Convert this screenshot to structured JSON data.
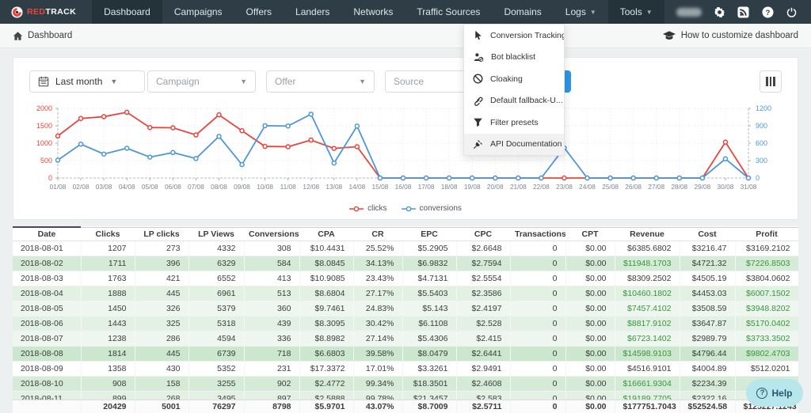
{
  "navbar": {
    "logo_red": "RED",
    "logo_track": "TRACK",
    "items": [
      {
        "label": "Dashboard",
        "state": "active",
        "caret": false
      },
      {
        "label": "Campaigns",
        "state": "",
        "caret": false
      },
      {
        "label": "Offers",
        "state": "",
        "caret": false
      },
      {
        "label": "Landers",
        "state": "",
        "caret": false
      },
      {
        "label": "Networks",
        "state": "",
        "caret": false
      },
      {
        "label": "Traffic Sources",
        "state": "",
        "caret": false
      },
      {
        "label": "Domains",
        "state": "",
        "caret": false
      },
      {
        "label": "Logs",
        "state": "",
        "caret": true
      },
      {
        "label": "Tools",
        "state": "open",
        "caret": true
      }
    ]
  },
  "breadcrumb": {
    "current": "Dashboard",
    "help_link": "How to customize dashboard"
  },
  "filters": {
    "date_range": "Last month",
    "campaign_placeholder": "Campaign",
    "offer_placeholder": "Offer",
    "source_placeholder": "Source"
  },
  "tools_menu": {
    "items": [
      {
        "label": "Conversion Tracking",
        "icon": "cursor-icon",
        "hover": false
      },
      {
        "label": "Bot blacklist",
        "icon": "bot-blacklist-icon",
        "hover": false
      },
      {
        "label": "Cloaking",
        "icon": "ban-icon",
        "hover": false
      },
      {
        "label": "Default fallback-U...",
        "icon": "link-icon",
        "hover": false
      },
      {
        "label": "Filter presets",
        "icon": "filter-icon",
        "hover": false
      },
      {
        "label": "API Documentation",
        "icon": "plug-icon",
        "hover": true
      }
    ]
  },
  "chart_data": {
    "type": "line",
    "title": "",
    "categories": [
      "01/08",
      "02/08",
      "03/08",
      "04/08",
      "05/08",
      "06/08",
      "07/08",
      "08/08",
      "09/08",
      "10/08",
      "11/08",
      "12/08",
      "13/08",
      "14/08",
      "15/08",
      "16/08",
      "17/08",
      "18/08",
      "19/08",
      "20/08",
      "21/08",
      "22/08",
      "23/08",
      "24/08",
      "25/08",
      "26/08",
      "27/08",
      "28/08",
      "29/08",
      "30/08",
      "31/08"
    ],
    "series": [
      {
        "name": "clicks",
        "axis": "left",
        "color": "#e8453c",
        "values": [
          1207,
          1711,
          1763,
          1888,
          1450,
          1443,
          1238,
          1814,
          1358,
          908,
          899,
          1090,
          850,
          900,
          0,
          0,
          0,
          0,
          0,
          0,
          0,
          0,
          0,
          0,
          0,
          0,
          0,
          0,
          0,
          1030,
          0
        ]
      },
      {
        "name": "conversions",
        "axis": "right",
        "color": "#4d97d8",
        "values": [
          308,
          584,
          413,
          513,
          360,
          439,
          336,
          718,
          231,
          902,
          897,
          1100,
          258,
          895,
          0,
          0,
          0,
          0,
          0,
          0,
          0,
          0,
          520,
          0,
          0,
          0,
          0,
          0,
          0,
          330,
          0
        ]
      }
    ],
    "left_axis": {
      "ticks": [
        0,
        500,
        1000,
        1500,
        2000
      ],
      "max": 2000,
      "color": "#e8453c"
    },
    "right_axis": {
      "ticks": [
        0,
        300,
        600,
        900,
        1200
      ],
      "max": 1200,
      "color": "#4d97d8"
    },
    "grid": true,
    "legend_position": "bottom"
  },
  "table": {
    "columns": [
      "Date",
      "Clicks",
      "LP clicks",
      "LP Views",
      "Conversions",
      "CPA",
      "CR",
      "EPC",
      "CPC",
      "Transactions",
      "CPT",
      "Revenue",
      "Cost",
      "Profit"
    ],
    "rows": [
      {
        "cells": [
          "2018-08-01",
          "1207",
          "273",
          "4332",
          "308",
          "$10.4431",
          "25.52%",
          "$5.2905",
          "$2.6648",
          "0",
          "$0.00",
          "$6385.6802",
          "$3216.47",
          "$3169.2102"
        ],
        "bg": "#ffffff",
        "green": false
      },
      {
        "cells": [
          "2018-08-02",
          "1711",
          "396",
          "6329",
          "584",
          "$8.0845",
          "34.13%",
          "$6.9832",
          "$2.7594",
          "0",
          "$0.00",
          "$11948.1703",
          "$4721.32",
          "$7226.8503"
        ],
        "bg": "#d5ebd7",
        "green": true
      },
      {
        "cells": [
          "2018-08-03",
          "1763",
          "421",
          "6552",
          "413",
          "$10.9085",
          "23.43%",
          "$4.7131",
          "$2.5554",
          "0",
          "$0.00",
          "$8309.2502",
          "$4505.19",
          "$3804.0602"
        ],
        "bg": "#ffffff",
        "green": false
      },
      {
        "cells": [
          "2018-08-04",
          "1888",
          "445",
          "6961",
          "513",
          "$8.6804",
          "27.17%",
          "$5.5403",
          "$2.3586",
          "0",
          "$0.00",
          "$10460.1802",
          "$4453.03",
          "$6007.1502"
        ],
        "bg": "#e2f1e3",
        "green": true
      },
      {
        "cells": [
          "2018-08-05",
          "1450",
          "326",
          "5379",
          "360",
          "$9.7461",
          "24.83%",
          "$5.143",
          "$2.4197",
          "0",
          "$0.00",
          "$7457.4102",
          "$3508.59",
          "$3948.8202"
        ],
        "bg": "#eef7ef",
        "green": true
      },
      {
        "cells": [
          "2018-08-06",
          "1443",
          "325",
          "5318",
          "439",
          "$8.3095",
          "30.42%",
          "$6.1108",
          "$2.528",
          "0",
          "$0.00",
          "$8817.9102",
          "$3647.87",
          "$5170.0402"
        ],
        "bg": "#e2f1e3",
        "green": true
      },
      {
        "cells": [
          "2018-08-07",
          "1238",
          "286",
          "4594",
          "336",
          "$8.8982",
          "27.14%",
          "$5.4306",
          "$2.415",
          "0",
          "$0.00",
          "$6723.1402",
          "$2989.79",
          "$3733.3502"
        ],
        "bg": "#eef7ef",
        "green": true
      },
      {
        "cells": [
          "2018-08-08",
          "1814",
          "445",
          "6739",
          "718",
          "$6.6803",
          "39.58%",
          "$8.0479",
          "$2.6441",
          "0",
          "$0.00",
          "$14598.9103",
          "$4796.44",
          "$9802.4703"
        ],
        "bg": "#cbe7ce",
        "green": true
      },
      {
        "cells": [
          "2018-08-09",
          "1358",
          "430",
          "5352",
          "231",
          "$17.3372",
          "17.01%",
          "$3.3261",
          "$2.9491",
          "0",
          "$0.00",
          "$4516.9101",
          "$4004.89",
          "$512.0201"
        ],
        "bg": "#ffffff",
        "green": false
      },
      {
        "cells": [
          "2018-08-10",
          "908",
          "158",
          "3255",
          "902",
          "$2.4772",
          "99.34%",
          "$18.3501",
          "$2.4608",
          "0",
          "$0.00",
          "$16661.9304",
          "$2234.39",
          ""
        ],
        "bg": "#d5ebd7",
        "green": true
      },
      {
        "cells": [
          "2018-08-11",
          "899",
          "268",
          "3495",
          "897",
          "$2.5888",
          "99.78%",
          "$21.3457",
          "$2.583",
          "0",
          "$0.00",
          "$19189.7705",
          "$2322.16",
          ""
        ],
        "bg": "#e2f1e3",
        "green": true
      }
    ],
    "totals": [
      "",
      "20429",
      "5001",
      "76297",
      "8798",
      "$5.9701",
      "43.07%",
      "$8.7009",
      "$2.5711",
      "0",
      "$0.00",
      "$177751.7043",
      "$52524.58",
      "$125227.1243"
    ]
  },
  "help_button": {
    "label": "Help"
  }
}
